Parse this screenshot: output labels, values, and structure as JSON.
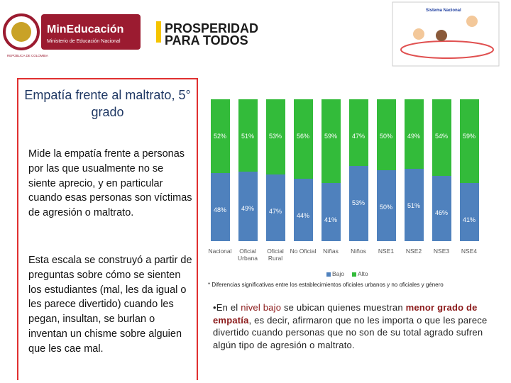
{
  "header": {
    "ministry_name": "MinEducación",
    "ministry_subtitle": "Ministerio de Educación Nacional",
    "republic": "REPÚBLICA DE COLOMBIA",
    "slogan_line1": "PROSPERIDAD",
    "slogan_line2": "PARA TODOS",
    "system_name": "Sistema Nacional"
  },
  "panel": {
    "title": "Empatía frente al maltrato, 5° grado",
    "paragraphs": [
      "Mide la empatía frente a personas por las que usualmente no se siente aprecio, y en particular cuando esas personas son víctimas de agresión o maltrato.",
      "Esta escala se construyó a partir de preguntas sobre cómo se sienten los estudiantes (mal, les da igual o les parece divertido) cuando les pegan, insultan, se burlan o inventan un chisme sobre alguien que les cae mal."
    ]
  },
  "chart_data": {
    "type": "stacked_bar",
    "categories": [
      "Nacional",
      "Oficial Urbana",
      "Oficial Rural",
      "No Oficial",
      "Niñas",
      "Niños",
      "NSE1",
      "NSE2",
      "NSE3",
      "NSE4"
    ],
    "series": [
      {
        "name": "Bajo",
        "color": "#4f81bd",
        "values": [
          48,
          49,
          47,
          44,
          41,
          53,
          50,
          51,
          46,
          41
        ],
        "value_labels": [
          "48%",
          "49%",
          "47%",
          "44%",
          "41%",
          "53%",
          "50%",
          "51%",
          "46%",
          "41%"
        ]
      },
      {
        "name": "Alto",
        "color": "#33bb3a",
        "values": [
          52,
          51,
          53,
          56,
          59,
          47,
          50,
          49,
          54,
          59
        ],
        "value_labels": [
          "52%",
          "51%",
          "53%",
          "56%",
          "59%",
          "47%",
          "50%",
          "49%",
          "54%",
          "59%"
        ]
      }
    ],
    "legend": "bottom",
    "footnote": "* Diferencias significativas entre los establecimientos oficiales urbanos y no oficiales y género"
  },
  "bullet": {
    "segments": [
      {
        "text": "•En el ",
        "style": "plain"
      },
      {
        "text": "nivel bajo",
        "style": "highlight"
      },
      {
        "text": " se ubican quienes muestran ",
        "style": "plain"
      },
      {
        "text": "menor grado de empatía",
        "style": "strong"
      },
      {
        "text": ", es decir, afirmaron que no les importa o que les parece divertido cuando personas que no son de su total agrado sufren algún tipo de agresión o maltrato.",
        "style": "plain"
      }
    ]
  }
}
